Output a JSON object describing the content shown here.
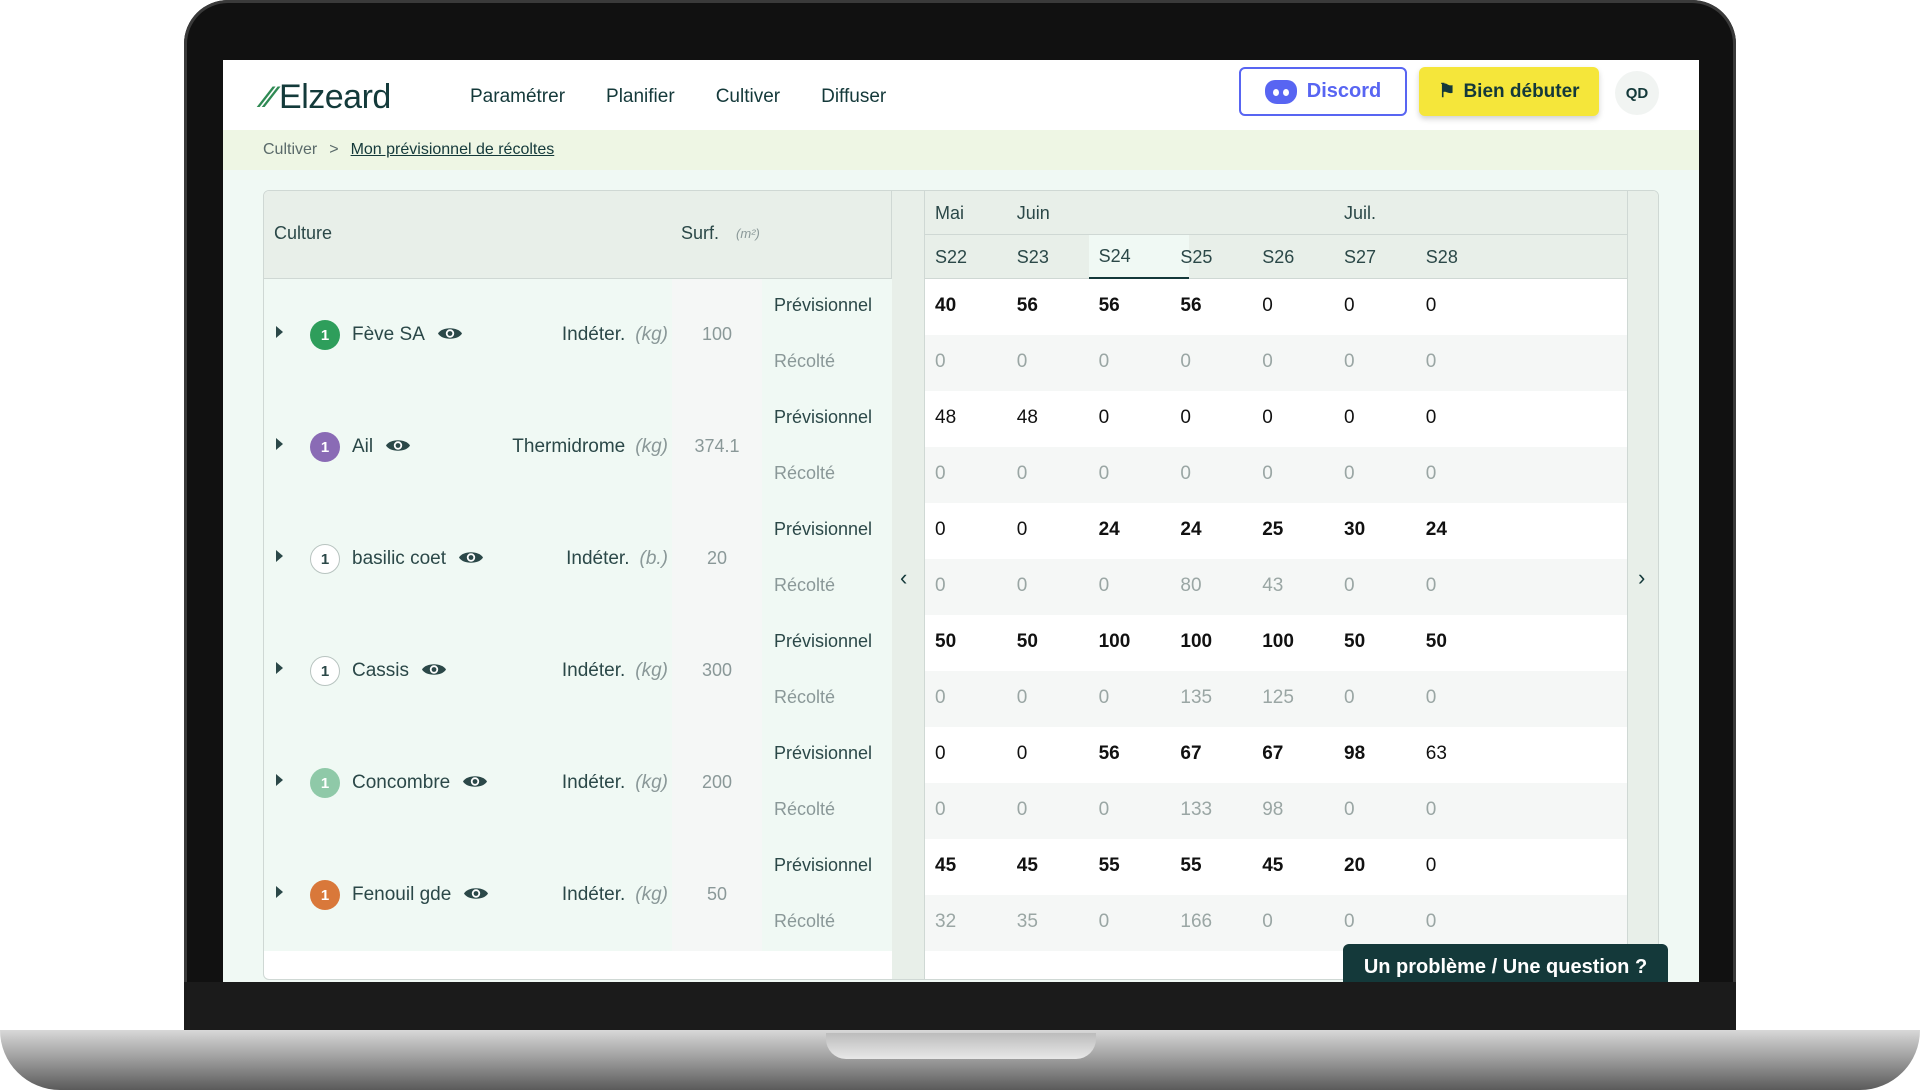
{
  "app": {
    "logo_text": "Elzeard"
  },
  "nav": [
    "Paramétrer",
    "Planifier",
    "Cultiver",
    "Diffuser"
  ],
  "header": {
    "discord_label": "Discord",
    "start_label": "Bien débuter",
    "avatar": "QD"
  },
  "breadcrumb": {
    "parent": "Cultiver",
    "sep": ">",
    "current": "Mon prévisionnel de récoltes"
  },
  "table": {
    "col_culture": "Culture",
    "col_surf": "Surf.",
    "col_unit": "(m²)",
    "label_forecast": "Prévisionnel",
    "label_harvested": "Récolté",
    "months": [
      {
        "label": "Mai",
        "week_index": 0
      },
      {
        "label": "Juin",
        "week_index": 1
      },
      {
        "label": "Juil.",
        "week_index": 5
      }
    ],
    "weeks": [
      "S22",
      "S23",
      "S24",
      "S25",
      "S26",
      "S27",
      "S28"
    ],
    "active_week": "S24",
    "rows": [
      {
        "badge": "1",
        "badge_color": "#2e9e5b",
        "outline": false,
        "name": "Fève SA",
        "variety": "Indéter.",
        "unit": "(kg)",
        "surface": "100",
        "forecast": [
          "40",
          "56",
          "56",
          "56",
          "0",
          "0",
          "0"
        ],
        "forecast_bold": [
          true,
          true,
          true,
          true,
          false,
          false,
          false
        ],
        "harvested": [
          "0",
          "0",
          "0",
          "0",
          "0",
          "0",
          "0"
        ]
      },
      {
        "badge": "1",
        "badge_color": "#8a6bb5",
        "outline": false,
        "name": "Ail",
        "variety": "Thermidrome",
        "unit": "(kg)",
        "surface": "374.1",
        "forecast": [
          "48",
          "48",
          "0",
          "0",
          "0",
          "0",
          "0"
        ],
        "forecast_bold": [
          false,
          false,
          false,
          false,
          false,
          false,
          false
        ],
        "harvested": [
          "0",
          "0",
          "0",
          "0",
          "0",
          "0",
          "0"
        ]
      },
      {
        "badge": "1",
        "badge_color": "#ffffff",
        "outline": true,
        "name": "basilic coet",
        "variety": "Indéter.",
        "unit": "(b.)",
        "surface": "20",
        "forecast": [
          "0",
          "0",
          "24",
          "24",
          "25",
          "30",
          "24"
        ],
        "forecast_bold": [
          false,
          false,
          true,
          true,
          true,
          true,
          true
        ],
        "harvested": [
          "0",
          "0",
          "0",
          "80",
          "43",
          "0",
          "0"
        ]
      },
      {
        "badge": "1",
        "badge_color": "#ffffff",
        "outline": true,
        "name": "Cassis",
        "variety": "Indéter.",
        "unit": "(kg)",
        "surface": "300",
        "forecast": [
          "50",
          "50",
          "100",
          "100",
          "100",
          "50",
          "50"
        ],
        "forecast_bold": [
          true,
          true,
          true,
          true,
          true,
          true,
          true
        ],
        "harvested": [
          "0",
          "0",
          "0",
          "135",
          "125",
          "0",
          "0"
        ]
      },
      {
        "badge": "1",
        "badge_color": "#8fc9a8",
        "outline": false,
        "name": "Concombre",
        "variety": "Indéter.",
        "unit": "(kg)",
        "surface": "200",
        "forecast": [
          "0",
          "0",
          "56",
          "67",
          "67",
          "98",
          "63"
        ],
        "forecast_bold": [
          false,
          false,
          true,
          true,
          true,
          true,
          false
        ],
        "harvested": [
          "0",
          "0",
          "0",
          "133",
          "98",
          "0",
          "0"
        ]
      },
      {
        "badge": "1",
        "badge_color": "#d9783a",
        "outline": false,
        "name": "Fenouil gde",
        "variety": "Indéter.",
        "unit": "(kg)",
        "surface": "50",
        "forecast": [
          "45",
          "45",
          "55",
          "55",
          "45",
          "20",
          "0"
        ],
        "forecast_bold": [
          true,
          true,
          true,
          true,
          true,
          true,
          false
        ],
        "harvested": [
          "32",
          "35",
          "0",
          "166",
          "0",
          "0",
          "0"
        ]
      }
    ]
  },
  "help_label": "Un problème / Une question ?",
  "colors": {
    "brand": "#14393a",
    "accent_yellow": "#f5e63a",
    "discord": "#5865f2"
  }
}
